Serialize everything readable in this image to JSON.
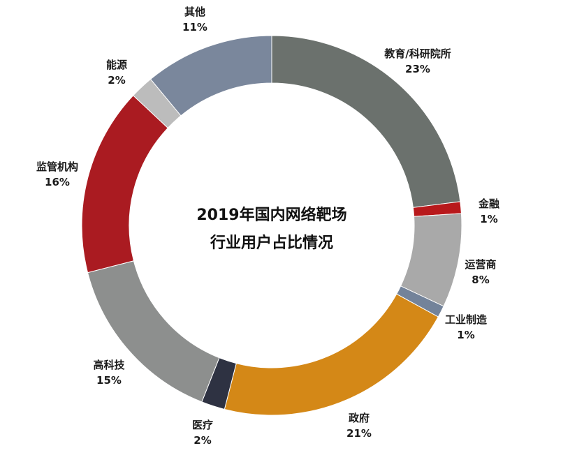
{
  "chart_data": {
    "type": "pie",
    "variant": "donut",
    "title_lines": [
      "2019年国内网络靶场",
      "行业用户占比情况"
    ],
    "slices": [
      {
        "label": "教育/科研院所",
        "value": 23,
        "value_text": "23%",
        "color": "#6b716d"
      },
      {
        "label": "金融",
        "value": 1,
        "value_text": "1%",
        "color": "#b8191c"
      },
      {
        "label": "运营商",
        "value": 8,
        "value_text": "8%",
        "color": "#a9a9a9"
      },
      {
        "label": "工业制造",
        "value": 1,
        "value_text": "1%",
        "color": "#73839a"
      },
      {
        "label": "政府",
        "value": 21,
        "value_text": "21%",
        "color": "#d48817"
      },
      {
        "label": "医疗",
        "value": 2,
        "value_text": "2%",
        "color": "#2e3242"
      },
      {
        "label": "高科技",
        "value": 15,
        "value_text": "15%",
        "color": "#8d8f8e"
      },
      {
        "label": "监管机构",
        "value": 16,
        "value_text": "16%",
        "color": "#aa1b21"
      },
      {
        "label": "能源",
        "value": 2,
        "value_text": "2%",
        "color": "#bcbcbc"
      },
      {
        "label": "其他",
        "value": 11,
        "value_text": "11%",
        "color": "#7a879c"
      }
    ]
  }
}
